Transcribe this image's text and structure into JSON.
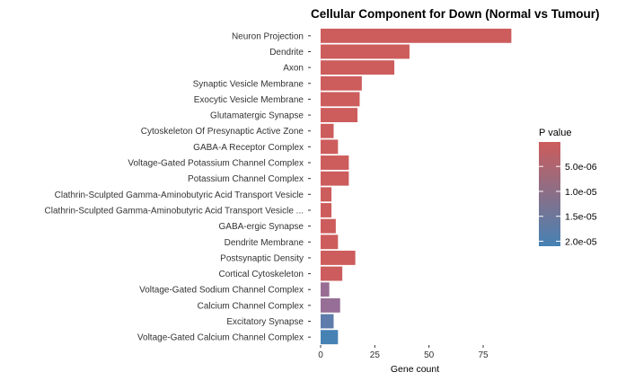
{
  "chart_data": {
    "type": "bar",
    "orientation": "horizontal",
    "title": "Cellular Component for Down (Normal vs Tumour)",
    "xlabel": "Gene count",
    "ylabel": "",
    "xlim": [
      0,
      91
    ],
    "xticks": [
      0,
      25,
      50,
      75
    ],
    "grid": false,
    "legend": {
      "title": "P value",
      "position": "right",
      "type": "colorbar",
      "ticks": [
        {
          "label": "5.0e-06",
          "value": 5e-06
        },
        {
          "label": "1.0e-05",
          "value": 1e-05
        },
        {
          "label": "1.5e-05",
          "value": 1.5e-05
        },
        {
          "label": "2.0e-05",
          "value": 2e-05
        }
      ],
      "range": [
        1e-07,
        2.1e-05
      ],
      "low_color": "#cd5c5c",
      "high_color": "#4682b4"
    },
    "categories": [
      "Neuron Projection",
      "Dendrite",
      "Axon",
      "Synaptic Vesicle Membrane",
      "Exocytic Vesicle Membrane",
      "Glutamatergic Synapse",
      "Cytoskeleton Of Presynaptic Active Zone",
      "GABA-A Receptor Complex",
      "Voltage-Gated Potassium Channel Complex",
      "Potassium Channel Complex",
      "Clathrin-Sculpted Gamma-Aminobutyric Acid Transport Vesicle",
      "Clathrin-Sculpted Gamma-Aminobutyric Acid Transport Vesicle ...",
      "GABA-ergic Synapse",
      "Dendrite Membrane",
      "Postsynaptic Density",
      "Cortical Cytoskeleton",
      "Voltage-Gated Sodium Channel Complex",
      "Calcium Channel Complex",
      "Excitatory Synapse",
      "Voltage-Gated Calcium Channel Complex"
    ],
    "values": [
      88,
      41,
      34,
      19,
      18,
      17,
      6,
      8,
      13,
      13,
      5,
      5,
      7,
      8,
      16,
      10,
      4,
      9,
      6,
      8
    ],
    "pvalues": [
      1e-07,
      1e-07,
      1e-07,
      1e-07,
      1e-07,
      1e-07,
      1e-07,
      1e-07,
      1e-07,
      1e-07,
      1e-07,
      1e-07,
      1e-07,
      1e-07,
      1e-07,
      2e-07,
      1e-05,
      1.05e-05,
      1.8e-05,
      2.1e-05
    ]
  }
}
